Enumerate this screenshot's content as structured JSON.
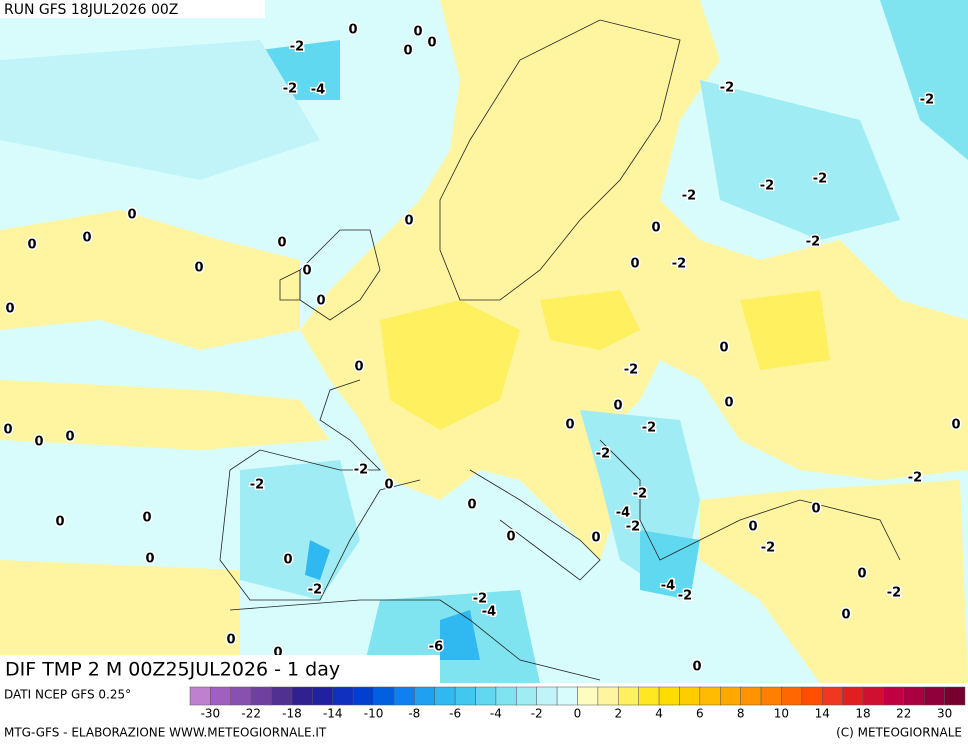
{
  "header": {
    "run": "RUN GFS 18JUL2026 00Z"
  },
  "map": {
    "labels": [
      "-2",
      "0",
      "0",
      "0",
      "0",
      "-2",
      "-4",
      "-2",
      "-2",
      "-2",
      "-2",
      "-2",
      "0",
      "0",
      "0",
      "0",
      "0",
      "0",
      "-2",
      "0",
      "0",
      "0",
      "-2",
      "0",
      "0",
      "0",
      "0",
      "-2",
      "0",
      "0",
      "0",
      "0",
      "0",
      "0",
      "-2",
      "0",
      "-2",
      "-2",
      "-2",
      "-2",
      "0",
      "-2",
      "0",
      "0",
      "-4",
      "0",
      "0",
      "-2",
      "0",
      "0",
      "0",
      "-2",
      "0",
      "0",
      "0",
      "-2",
      "-4",
      "-2",
      "-2",
      "-2",
      "-4",
      "0",
      "0",
      "0",
      "-6",
      "0"
    ]
  },
  "footer": {
    "title": "DIF TMP 2 M 00Z25JUL2026 - 1 day",
    "source": "DATI NCEP GFS 0.25°",
    "credit_left": "MTG-GFS - ELABORAZIONE WWW.METEOGIORNALE.IT",
    "credit_right": "(C) METEOGIORNALE"
  },
  "legend": {
    "colors": [
      "#c080d0",
      "#a060c0",
      "#8850b0",
      "#7040a0",
      "#503090",
      "#302090",
      "#2020a0",
      "#1030c0",
      "#0040d0",
      "#0060e0",
      "#1080f0",
      "#20a0f0",
      "#30b8f0",
      "#40c8f0",
      "#60d8f0",
      "#80e4f0",
      "#a0ecf4",
      "#c0f4f8",
      "#d8fcfc",
      "#fffcc0",
      "#fff4a0",
      "#fff060",
      "#ffe820",
      "#ffdc00",
      "#ffcc00",
      "#ffbc00",
      "#ffa800",
      "#ff9400",
      "#ff8000",
      "#ff6800",
      "#ff5000",
      "#f03820",
      "#e02020",
      "#d01030",
      "#c00040",
      "#a80040",
      "#900038",
      "#780030"
    ],
    "ticks": [
      -30,
      -22,
      -18,
      -14,
      -10,
      -8,
      -6,
      -4,
      -2,
      0,
      2,
      4,
      6,
      8,
      10,
      14,
      18,
      22,
      30
    ]
  }
}
